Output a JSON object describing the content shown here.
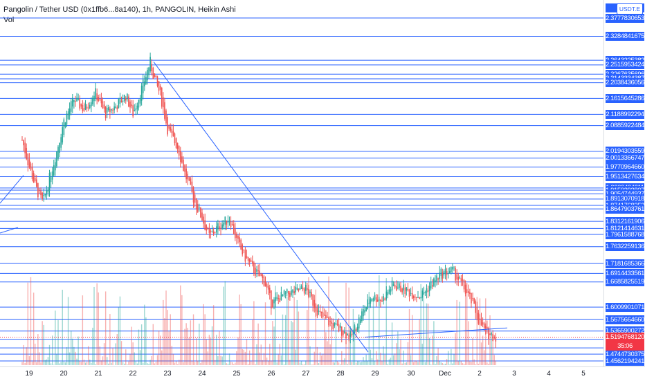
{
  "header": {
    "title": "Pangolin / Tether USD (0x1ffb6...8a140), 1h, PANGOLIN, Heikin Ashi",
    "volume_label": "Vol"
  },
  "axis": {
    "currency_badge": "USDT.E",
    "top_partial_label": "2.",
    "top_partial_suffix": "60"
  },
  "colors": {
    "line": "#2962ff",
    "up": "#26a69a",
    "down": "#ef5350",
    "current_price": "#f23645"
  },
  "chart_data": {
    "type": "candlestick",
    "chart_style": "Heikin Ashi",
    "interval": "1h",
    "y_scale": "linear",
    "x_tick_labels": [
      "19",
      "20",
      "21",
      "22",
      "23",
      "24",
      "25",
      "26",
      "27",
      "28",
      "29",
      "30",
      "Dec",
      "2",
      "3",
      "4",
      "5"
    ],
    "horizontal_levels": [
      2.3777830653,
      2.3284841675,
      2.2643225382,
      2.2515953424,
      2.2267635696,
      2.2143334387,
      2.2038436056,
      2.1615645286,
      2.1188992294,
      2.0885922484,
      2.0194303559,
      2.0013366747,
      1.977096466,
      1.9513427634,
      1.9209434211,
      1.9150293807,
      1.9054744937,
      1.8913070918,
      1.8741768252,
      1.8647903761,
      1.8312161906,
      1.8121414631,
      1.7961588768,
      1.7632259136,
      1.7181685366,
      1.6914433561,
      1.6685825519,
      1.6009901071,
      1.567566466,
      1.5365900272,
      1.5144392116,
      1.4913732495,
      1.4744730375,
      1.4562194241
    ],
    "current_price": 1.519476812,
    "countdown": "35:06",
    "price_path": {
      "x": [
        "18.8",
        "19.0",
        "19.2",
        "19.4",
        "19.6",
        "19.8",
        "20.0",
        "20.3",
        "20.6",
        "20.9",
        "21.2",
        "21.5",
        "21.8",
        "22.0",
        "22.3",
        "22.5",
        "22.6",
        "22.8",
        "23.0",
        "23.3",
        "23.5",
        "23.8",
        "24.0",
        "24.2",
        "24.5",
        "24.8",
        "25.0",
        "25.2",
        "25.5",
        "25.8",
        "26.0",
        "26.3",
        "26.6",
        "27.0",
        "27.4",
        "27.8",
        "28.0",
        "28.3",
        "28.6",
        "28.9",
        "29.2",
        "29.5",
        "29.8",
        "30.0",
        "30.3",
        "30.6",
        "30.9",
        "31.2",
        "31.5",
        "31.8",
        "32.0",
        "32.2",
        "32.5"
      ],
      "close": [
        2.05,
        1.98,
        1.92,
        1.88,
        1.95,
        2.02,
        2.1,
        2.16,
        2.13,
        2.18,
        2.12,
        2.14,
        2.17,
        2.12,
        2.2,
        2.26,
        2.22,
        2.17,
        2.08,
        2.03,
        1.96,
        1.88,
        1.84,
        1.79,
        1.82,
        1.84,
        1.78,
        1.74,
        1.7,
        1.67,
        1.61,
        1.63,
        1.64,
        1.65,
        1.58,
        1.55,
        1.54,
        1.52,
        1.58,
        1.63,
        1.62,
        1.66,
        1.65,
        1.64,
        1.63,
        1.66,
        1.69,
        1.7,
        1.66,
        1.61,
        1.56,
        1.53,
        1.52
      ]
    },
    "trendlines": [
      {
        "from": [
          "22.6",
          2.26
        ],
        "to": [
          "28.8",
          1.48
        ]
      },
      {
        "from": [
          "28.7",
          1.52
        ],
        "to": [
          "32.8",
          1.545
        ]
      }
    ]
  }
}
